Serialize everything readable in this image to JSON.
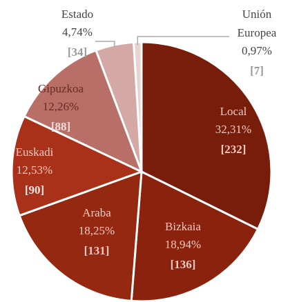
{
  "chart_data": {
    "type": "pie",
    "categories": [
      "Local",
      "Bizkaia",
      "Araba",
      "Euskadi",
      "Gipuzkoa",
      "Estado",
      "Unión Europea"
    ],
    "values": [
      32.31,
      18.94,
      18.25,
      12.53,
      12.26,
      4.74,
      0.97
    ],
    "value_labels": [
      "32,31%",
      "18,94%",
      "18,25%",
      "12,53%",
      "12,26%",
      "4,74%",
      "0,97%"
    ],
    "counts": [
      232,
      136,
      131,
      90,
      88,
      34,
      7
    ],
    "count_labels": [
      "[232]",
      "[136]",
      "[131]",
      "[90]",
      "[88]",
      "[34]",
      "[7]"
    ],
    "colors": [
      "#791d0b",
      "#8a220d",
      "#952811",
      "#a93019",
      "#b86f68",
      "#d4a9a5",
      "#e8d3d1"
    ]
  }
}
